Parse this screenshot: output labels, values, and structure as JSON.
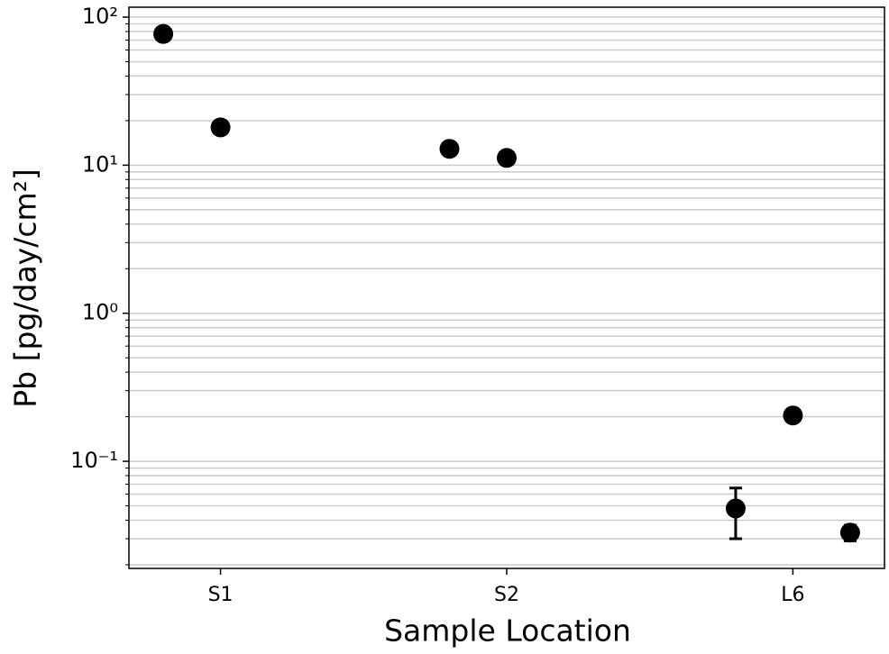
{
  "chart_data": {
    "type": "scatter",
    "xlabel": "Sample Location",
    "ylabel": "Pb [pg/day/cm²]",
    "x": [
      -0.2,
      0,
      0.8,
      1,
      1.8,
      2,
      2.2
    ],
    "series": [
      {
        "color": "#000000",
        "values": [
          77,
          18,
          12.9,
          11.2,
          0.048,
          0.204,
          0.033
        ],
        "errors": [
          null,
          null,
          null,
          null,
          0.018,
          null,
          0.004
        ]
      }
    ],
    "xlim": [
      -0.32,
      2.32
    ],
    "xticks": [
      {
        "value": 0,
        "label": "S1"
      },
      {
        "value": 1,
        "label": "S2"
      },
      {
        "value": 2,
        "label": "L6"
      }
    ],
    "ylim": [
      0.0189,
      116.7
    ],
    "log_y": true,
    "yticks": [
      {
        "value": 0.1,
        "label": "10⁻¹"
      },
      {
        "value": 1,
        "label": "10⁰"
      },
      {
        "value": 10,
        "label": "10¹"
      },
      {
        "value": 100,
        "label": "10²"
      }
    ],
    "y_minor_ticks": [
      0.02,
      0.03,
      0.04,
      0.05,
      0.06,
      0.07,
      0.08,
      0.09,
      0.2,
      0.3,
      0.4,
      0.5,
      0.6,
      0.7,
      0.8,
      0.9,
      2,
      3,
      4,
      5,
      6,
      7,
      8,
      9,
      20,
      30,
      40,
      50,
      60,
      70,
      80,
      90
    ],
    "grid": true
  }
}
